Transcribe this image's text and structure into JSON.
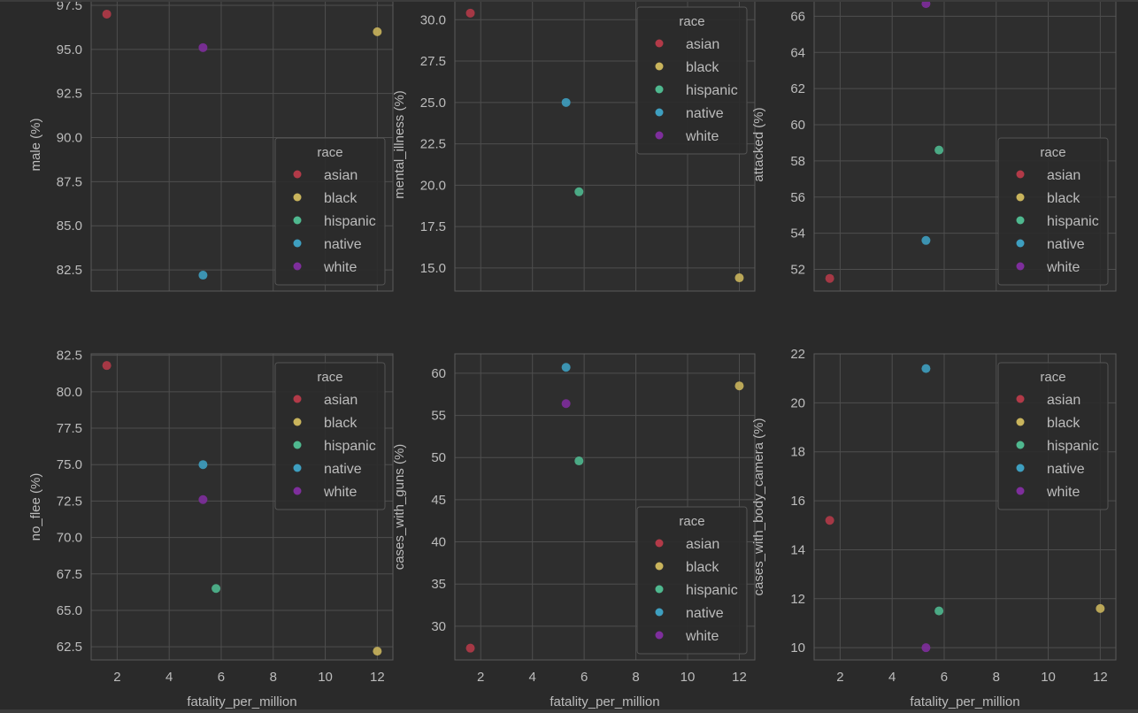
{
  "colors": {
    "background": "#2a2a2a",
    "panel": "#2e2e2e",
    "grid": "#4e4e4e",
    "spine": "#5a5a5a",
    "text": "#bcbcbc",
    "legend_bg": "#2b2b2b",
    "legend_edge": "#545454",
    "series": {
      "asian": "#b23a48",
      "black": "#c9b45c",
      "hispanic": "#4fb88f",
      "native": "#3e9fc0",
      "white": "#7e2e9c"
    }
  },
  "chart_data": [
    {
      "type": "scatter",
      "xlabel": "",
      "ylabel": "male (%)",
      "xlim": [
        1.0,
        12.6
      ],
      "ylim": [
        81.3,
        97.9
      ],
      "xticks": [
        2,
        4,
        6,
        8,
        10,
        12
      ],
      "xtick_labels": [],
      "yticks": [
        82.5,
        85.0,
        87.5,
        90.0,
        92.5,
        95.0,
        97.5
      ],
      "ytick_labels": [
        "82.5",
        "85.0",
        "87.5",
        "90.0",
        "92.5",
        "95.0",
        "97.5"
      ],
      "grid": true,
      "legend": {
        "title": "race",
        "position": "lower-right"
      },
      "series": [
        {
          "name": "asian",
          "x": [
            1.6
          ],
          "y": [
            97.0
          ]
        },
        {
          "name": "black",
          "x": [
            12.0
          ],
          "y": [
            96.0
          ]
        },
        {
          "name": "hispanic",
          "x": [],
          "y": []
        },
        {
          "name": "native",
          "x": [
            5.3
          ],
          "y": [
            82.2
          ]
        },
        {
          "name": "white",
          "x": [
            5.3
          ],
          "y": [
            95.1
          ]
        }
      ]
    },
    {
      "type": "scatter",
      "xlabel": "",
      "ylabel": "mental_illness (%)",
      "xlim": [
        1.0,
        12.6
      ],
      "ylim": [
        13.6,
        31.3
      ],
      "xticks": [
        2,
        4,
        6,
        8,
        10,
        12
      ],
      "xtick_labels": [],
      "yticks": [
        15.0,
        17.5,
        20.0,
        22.5,
        25.0,
        27.5,
        30.0
      ],
      "ytick_labels": [
        "15.0",
        "17.5",
        "20.0",
        "22.5",
        "25.0",
        "27.5",
        "30.0"
      ],
      "grid": true,
      "legend": {
        "title": "race",
        "position": "upper-right"
      },
      "series": [
        {
          "name": "asian",
          "x": [
            1.6
          ],
          "y": [
            30.4
          ]
        },
        {
          "name": "black",
          "x": [
            12.0
          ],
          "y": [
            14.4
          ]
        },
        {
          "name": "hispanic",
          "x": [
            5.8
          ],
          "y": [
            19.6
          ]
        },
        {
          "name": "native",
          "x": [
            5.3
          ],
          "y": [
            25.0
          ]
        },
        {
          "name": "white",
          "x": [],
          "y": []
        }
      ]
    },
    {
      "type": "scatter",
      "xlabel": "",
      "ylabel": "attacked (%)",
      "xlim": [
        1.0,
        12.6
      ],
      "ylim": [
        50.8,
        67.0
      ],
      "xticks": [
        2,
        4,
        6,
        8,
        10,
        12
      ],
      "xtick_labels": [],
      "yticks": [
        52,
        54,
        56,
        58,
        60,
        62,
        64,
        66
      ],
      "ytick_labels": [
        "52",
        "54",
        "56",
        "58",
        "60",
        "62",
        "64",
        "66"
      ],
      "grid": true,
      "legend": {
        "title": "race",
        "position": "lower-right"
      },
      "series": [
        {
          "name": "asian",
          "x": [
            1.6
          ],
          "y": [
            51.5
          ]
        },
        {
          "name": "black",
          "x": [],
          "y": []
        },
        {
          "name": "hispanic",
          "x": [
            5.8
          ],
          "y": [
            58.6
          ]
        },
        {
          "name": "native",
          "x": [
            5.3
          ],
          "y": [
            53.6
          ]
        },
        {
          "name": "white",
          "x": [
            5.3
          ],
          "y": [
            66.7
          ]
        }
      ]
    },
    {
      "type": "scatter",
      "xlabel": "fatality_per_million",
      "ylabel": "no_flee (%)",
      "xlim": [
        1.0,
        12.6
      ],
      "ylim": [
        61.6,
        82.6
      ],
      "xticks": [
        2,
        4,
        6,
        8,
        10,
        12
      ],
      "xtick_labels": [
        "2",
        "4",
        "6",
        "8",
        "10",
        "12"
      ],
      "yticks": [
        62.5,
        65.0,
        67.5,
        70.0,
        72.5,
        75.0,
        77.5,
        80.0,
        82.5
      ],
      "ytick_labels": [
        "62.5",
        "65.0",
        "67.5",
        "70.0",
        "72.5",
        "75.0",
        "77.5",
        "80.0",
        "82.5"
      ],
      "grid": true,
      "legend": {
        "title": "race",
        "position": "upper-right"
      },
      "series": [
        {
          "name": "asian",
          "x": [
            1.6
          ],
          "y": [
            81.8
          ]
        },
        {
          "name": "black",
          "x": [
            12.0
          ],
          "y": [
            62.2
          ]
        },
        {
          "name": "hispanic",
          "x": [
            5.8
          ],
          "y": [
            66.5
          ]
        },
        {
          "name": "native",
          "x": [
            5.3
          ],
          "y": [
            75.0
          ]
        },
        {
          "name": "white",
          "x": [
            5.3
          ],
          "y": [
            72.6
          ]
        }
      ]
    },
    {
      "type": "scatter",
      "xlabel": "fatality_per_million",
      "ylabel": "cases_with_guns (%)",
      "xlim": [
        1.0,
        12.6
      ],
      "ylim": [
        26.0,
        62.3
      ],
      "xticks": [
        2,
        4,
        6,
        8,
        10,
        12
      ],
      "xtick_labels": [
        "2",
        "4",
        "6",
        "8",
        "10",
        "12"
      ],
      "yticks": [
        30,
        35,
        40,
        45,
        50,
        55,
        60
      ],
      "ytick_labels": [
        "30",
        "35",
        "40",
        "45",
        "50",
        "55",
        "60"
      ],
      "grid": true,
      "legend": {
        "title": "race",
        "position": "lower-right"
      },
      "series": [
        {
          "name": "asian",
          "x": [
            1.6
          ],
          "y": [
            27.4
          ]
        },
        {
          "name": "black",
          "x": [
            12.0
          ],
          "y": [
            58.5
          ]
        },
        {
          "name": "hispanic",
          "x": [
            5.8
          ],
          "y": [
            49.6
          ]
        },
        {
          "name": "native",
          "x": [
            5.3
          ],
          "y": [
            60.7
          ]
        },
        {
          "name": "white",
          "x": [
            5.3
          ],
          "y": [
            56.4
          ]
        }
      ]
    },
    {
      "type": "scatter",
      "xlabel": "fatality_per_million",
      "ylabel": "cases_with_body_camera (%)",
      "xlim": [
        1.0,
        12.6
      ],
      "ylim": [
        9.5,
        22.0
      ],
      "xticks": [
        2,
        4,
        6,
        8,
        10,
        12
      ],
      "xtick_labels": [
        "2",
        "4",
        "6",
        "8",
        "10",
        "12"
      ],
      "yticks": [
        10,
        12,
        14,
        16,
        18,
        20,
        22
      ],
      "ytick_labels": [
        "10",
        "12",
        "14",
        "16",
        "18",
        "20",
        "22"
      ],
      "grid": true,
      "legend": {
        "title": "race",
        "position": "upper-right"
      },
      "series": [
        {
          "name": "asian",
          "x": [
            1.6
          ],
          "y": [
            15.2
          ]
        },
        {
          "name": "black",
          "x": [
            12.0
          ],
          "y": [
            11.6
          ]
        },
        {
          "name": "hispanic",
          "x": [
            5.8
          ],
          "y": [
            11.5
          ]
        },
        {
          "name": "native",
          "x": [
            5.3
          ],
          "y": [
            21.4
          ]
        },
        {
          "name": "white",
          "x": [
            5.3
          ],
          "y": [
            10.0
          ]
        }
      ]
    }
  ]
}
